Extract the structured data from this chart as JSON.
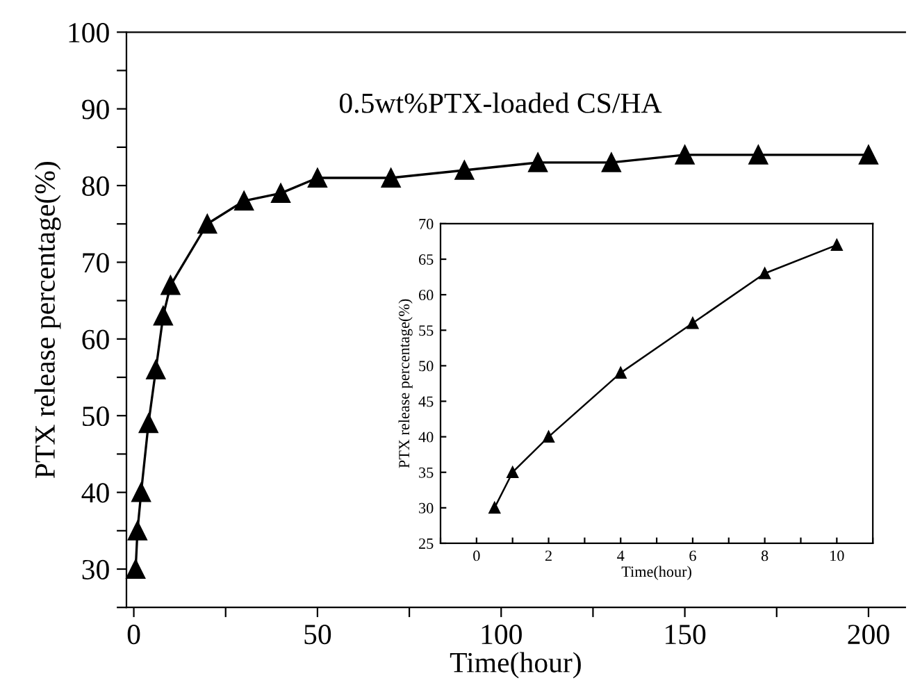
{
  "chart_data": [
    {
      "type": "line",
      "title": "0.5wt%PTX-loaded CS/HA",
      "xlabel": "Time(hour)",
      "ylabel": "PTX release percentage(%)",
      "x": [
        0.5,
        1,
        2,
        4,
        6,
        8,
        10,
        20,
        30,
        40,
        50,
        70,
        90,
        110,
        130,
        150,
        170,
        200
      ],
      "series": [
        {
          "color": "#000000",
          "values": [
            30,
            35,
            40,
            49,
            56,
            63,
            67,
            75,
            78,
            79,
            81,
            81,
            82,
            83,
            83,
            84,
            84,
            84
          ]
        }
      ],
      "xlim": [
        -2,
        210
      ],
      "ylim": [
        25,
        100
      ],
      "xticks": [
        0,
        {
          "value": 25,
          "label": null
        },
        50,
        {
          "value": 75,
          "label": null
        },
        100,
        {
          "value": 125,
          "label": null
        },
        150,
        {
          "value": 175,
          "label": null
        },
        200
      ],
      "yticks": [
        {
          "value": 25,
          "label": null
        },
        30,
        {
          "value": 35,
          "label": null
        },
        40,
        {
          "value": 45,
          "label": null
        },
        50,
        {
          "value": 55,
          "label": null
        },
        60,
        {
          "value": 65,
          "label": null
        },
        70,
        {
          "value": 75,
          "label": null
        },
        80,
        {
          "value": 85,
          "label": null
        },
        90,
        {
          "value": 95,
          "label": null
        },
        100
      ],
      "marker": "triangle",
      "line_style": "solid",
      "grid": false,
      "legend": false
    },
    {
      "type": "line",
      "xlabel": "Time(hour)",
      "ylabel": "PTX release percentage(%)",
      "x": [
        0.5,
        1,
        2,
        4,
        6,
        8,
        10
      ],
      "series": [
        {
          "color": "#000000",
          "values": [
            30,
            35,
            40,
            49,
            56,
            63,
            67
          ]
        }
      ],
      "xlim": [
        -1,
        11
      ],
      "ylim": [
        25,
        70
      ],
      "xticks": [
        {
          "value": -1,
          "label": null
        },
        0,
        {
          "value": 1,
          "label": null
        },
        2,
        {
          "value": 3,
          "label": null
        },
        4,
        {
          "value": 5,
          "label": null
        },
        6,
        {
          "value": 7,
          "label": null
        },
        8,
        {
          "value": 9,
          "label": null
        },
        10,
        {
          "value": 11,
          "label": null
        }
      ],
      "yticks": [
        25,
        30,
        35,
        40,
        45,
        50,
        55,
        60,
        65,
        70
      ],
      "marker": "triangle",
      "line_style": "solid",
      "grid": false,
      "legend": false
    }
  ]
}
